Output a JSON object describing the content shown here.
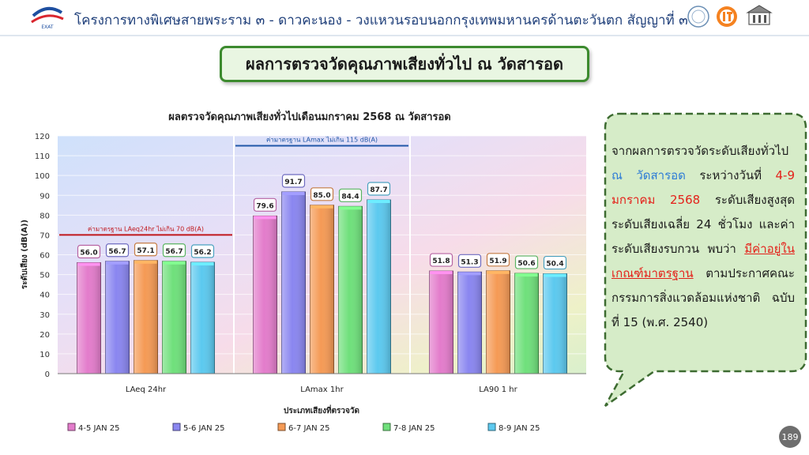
{
  "header": {
    "title": "โครงการทางพิเศษสายพระราม ๓ - ดาวคะนอง - วงแหวนรอบนอกกรุงเทพมหานครด้านตะวันตก สัญญาที่ ๓",
    "logo_text": "EXAT"
  },
  "slide_title": "ผลการตรวจวัดคุณภาพเสียงทั่วไป ณ วัดสารอด",
  "chart_data": {
    "type": "bar",
    "title": "ผลตรวจวัดคุณภาพเสียงทั่วไปเดือนมกราคม 2568 ณ วัดสารอด",
    "xlabel": "ประเภทเสียงที่ตรวจวัด",
    "ylabel": "ระดับเสียง (dB(A))",
    "ylim": [
      0,
      120
    ],
    "yticks": [
      0,
      10,
      20,
      30,
      40,
      50,
      60,
      70,
      80,
      90,
      100,
      110,
      120
    ],
    "categories": [
      "LAeq 24hr",
      "LAmax 1hr",
      "LA90 1 hr"
    ],
    "series": [
      {
        "name": "4-5 JAN  25",
        "values": [
          56.0,
          79.6,
          51.8
        ],
        "labels": [
          "56.0",
          "79.6",
          "51.8"
        ],
        "color": "#e37ccb"
      },
      {
        "name": "5-6 JAN  25",
        "values": [
          56.7,
          91.7,
          51.3
        ],
        "labels": [
          "56.7",
          "91.7",
          "51.3"
        ],
        "color": "#8a86f0"
      },
      {
        "name": "6-7 JAN  25",
        "values": [
          57.1,
          85.0,
          51.9
        ],
        "labels": [
          "57.1",
          "85.0",
          "51.9"
        ],
        "color": "#f59a55"
      },
      {
        "name": "7-8 JAN  25",
        "values": [
          56.7,
          84.4,
          50.6
        ],
        "labels": [
          "56.7",
          "84.4",
          "50.6"
        ],
        "color": "#6fe07b"
      },
      {
        "name": "8-9 JAN  25",
        "values": [
          56.2,
          87.7,
          50.4
        ],
        "labels": [
          "56.2",
          "87.7",
          "50.4"
        ],
        "color": "#5cc9ef"
      }
    ],
    "standards": [
      {
        "label": "ค่ามาตรฐาน LAeq24hr ไม่เกิน 70 dB(A)",
        "value": 70,
        "category": 0,
        "color": "#c0171c"
      },
      {
        "label": "ค่ามาตรฐาน LAmax ไม่เกิน 115 dB(A)",
        "value": 115,
        "category": 1,
        "color": "#2057a8"
      }
    ],
    "legend_position": "bottom"
  },
  "callout": {
    "t1": "จากผลการตรวจวัดระดับเสียงทั่วไป ",
    "t2": "ณ วัดสารอด",
    "t3": " ระหว่างวันที่ ",
    "t4": "4-9 มกราคม 2568",
    "t5": " ระดับเสียงสูงสุด ระดับเสียงเฉลี่ย 24 ชั่วโมง และค่าระดับเสียงรบกวน พบว่า ",
    "t6": "มีค่าอยู่ในเกณฑ์มาตรฐาน",
    "t7": " ตามประกาศคณะกรรมการสิ่งแวดล้อมแห่งชาติ ฉบับที่ 15 (พ.ศ. 2540)"
  },
  "page_number": "189"
}
